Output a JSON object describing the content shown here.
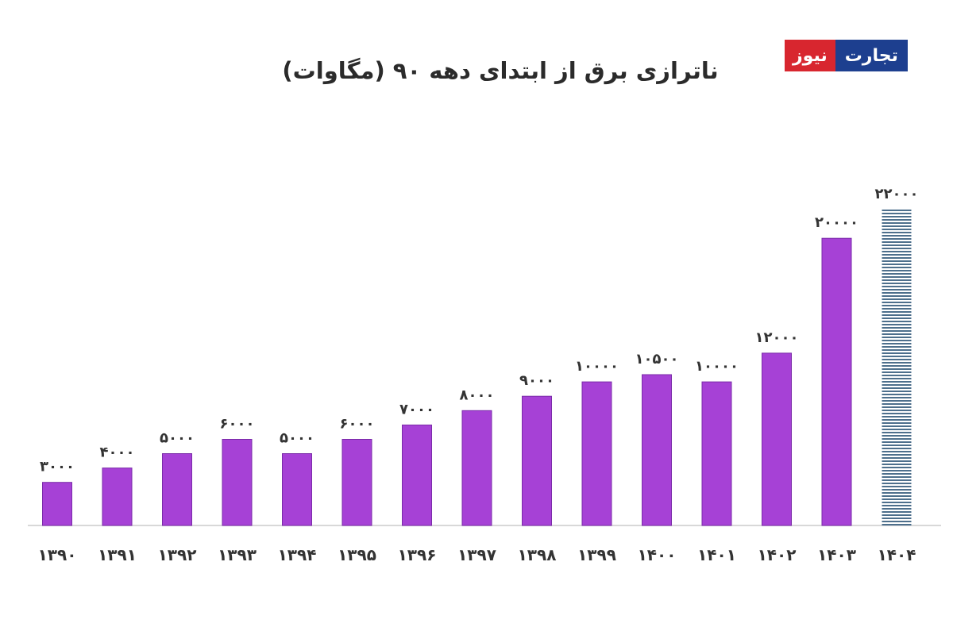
{
  "header": {
    "title": "ناترازی برق از ابتدای دهه ۹۰ (مگاوات)"
  },
  "logo": {
    "part_red": "نیوز",
    "part_blue": "تجارت"
  },
  "colors": {
    "bar": "#a641d6",
    "bar_edge": "#7a2ba8",
    "hatched_bar": "#4d6f8c",
    "baseline": "#d8d8d8"
  },
  "chart_data": {
    "type": "bar",
    "title": "ناترازی برق از ابتدای دهه ۹۰ (مگاوات)",
    "xlabel": "",
    "ylabel": "",
    "categories": [
      "۱۳۹۰",
      "۱۳۹۱",
      "۱۳۹۲",
      "۱۳۹۳",
      "۱۳۹۴",
      "۱۳۹۵",
      "۱۳۹۶",
      "۱۳۹۷",
      "۱۳۹۸",
      "۱۳۹۹",
      "۱۴۰۰",
      "۱۴۰۱",
      "۱۴۰۲",
      "۱۴۰۳",
      "۱۴۰۴"
    ],
    "values": [
      3000,
      4000,
      5000,
      6000,
      5000,
      6000,
      7000,
      8000,
      9000,
      10000,
      10500,
      10000,
      12000,
      20000,
      22000
    ],
    "value_labels": [
      "۳۰۰۰",
      "۴۰۰۰",
      "۵۰۰۰",
      "۶۰۰۰",
      "۵۰۰۰",
      "۶۰۰۰",
      "۷۰۰۰",
      "۸۰۰۰",
      "۹۰۰۰",
      "۱۰۰۰۰",
      "۱۰۵۰۰",
      "۱۰۰۰۰",
      "۱۲۰۰۰",
      "۲۰۰۰۰",
      "۲۲۰۰۰"
    ],
    "hatched": [
      false,
      false,
      false,
      false,
      false,
      false,
      false,
      false,
      false,
      false,
      false,
      false,
      false,
      false,
      true
    ],
    "ylim": [
      0,
      22000
    ],
    "grid": false,
    "legend": "none"
  }
}
